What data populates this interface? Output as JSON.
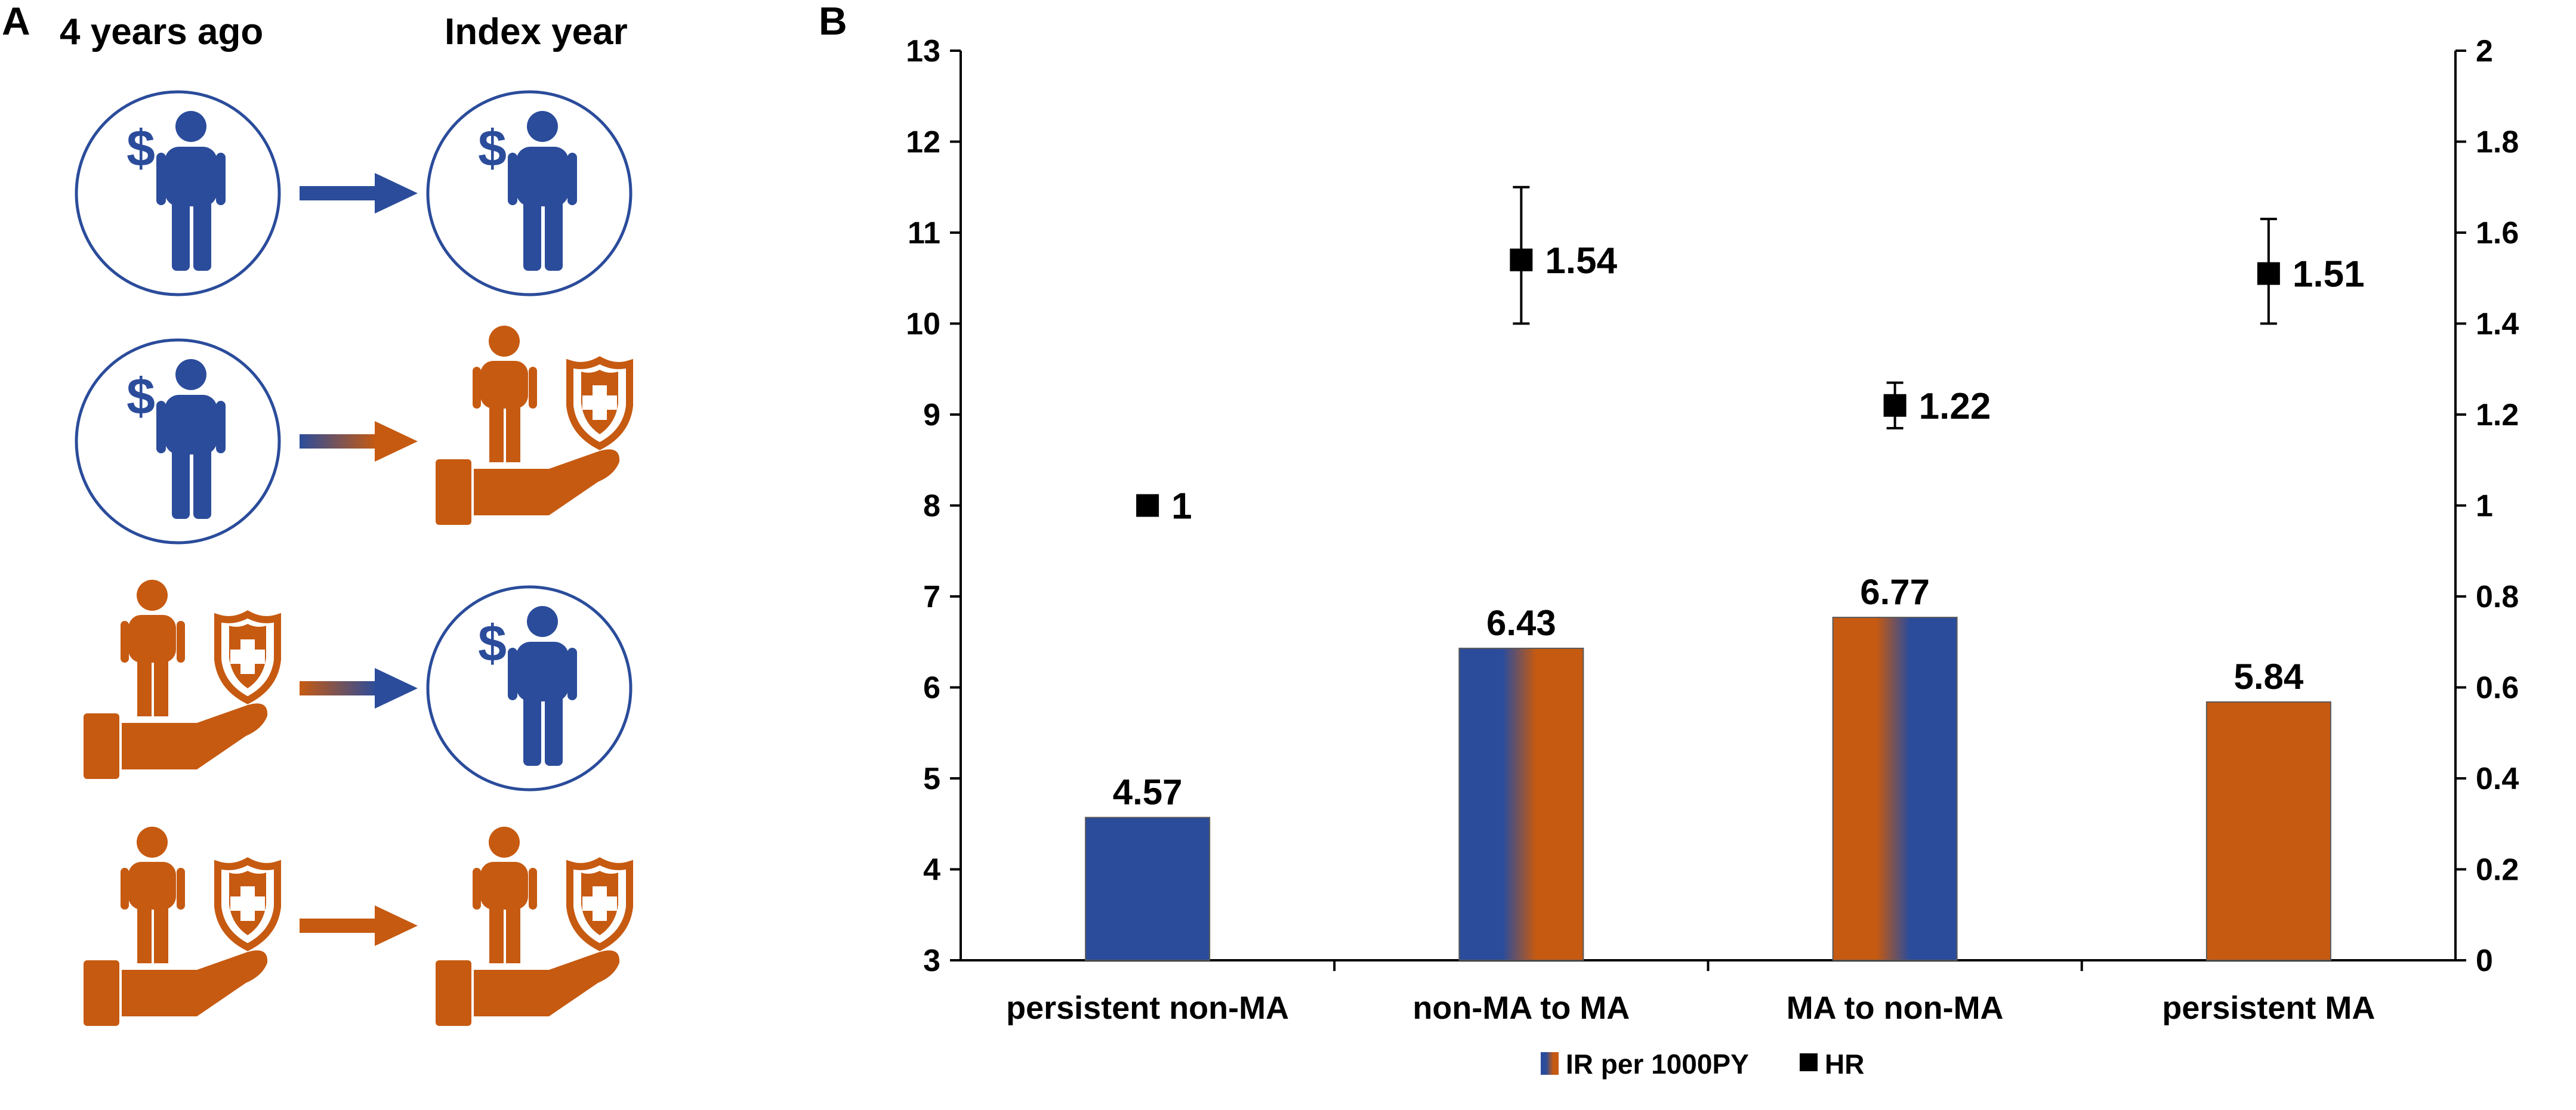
{
  "panel_a": {
    "label": "A",
    "col_left": "4 years ago",
    "col_right": "Index year",
    "dollar": "$",
    "rows": [
      {
        "from": "non-MA",
        "to": "non-MA"
      },
      {
        "from": "non-MA",
        "to": "MA"
      },
      {
        "from": "MA",
        "to": "non-MA"
      },
      {
        "from": "MA",
        "to": "MA"
      }
    ]
  },
  "chart_data": {
    "panel_label": "B",
    "type": "bar",
    "categories": [
      "persistent non-MA",
      "non-MA to MA",
      "MA to non-MA",
      "persistent MA"
    ],
    "series": [
      {
        "name": "IR per 1000PY",
        "type": "bar",
        "axis": "left",
        "values": [
          4.57,
          6.43,
          6.77,
          5.84
        ],
        "labels": [
          "4.57",
          "6.43",
          "6.77",
          "5.84"
        ]
      },
      {
        "name": "HR",
        "type": "scatter",
        "axis": "right",
        "values": [
          1,
          1.54,
          1.22,
          1.51
        ],
        "labels": [
          "1",
          "1.54",
          "1.22",
          "1.51"
        ],
        "ci_low": [
          null,
          1.4,
          1.17,
          1.4
        ],
        "ci_high": [
          null,
          1.7,
          1.27,
          1.63
        ]
      }
    ],
    "ylim_left": [
      3,
      13
    ],
    "yticks_left": [
      "3",
      "4",
      "5",
      "6",
      "7",
      "8",
      "9",
      "10",
      "11",
      "12",
      "13"
    ],
    "ylim_right": [
      0,
      2
    ],
    "yticks_right": [
      "0",
      "0.2",
      "0.4",
      "0.6",
      "0.8",
      "1",
      "1.2",
      "1.4",
      "1.6",
      "1.8",
      "2"
    ],
    "legend": [
      "IR per 1000PY",
      "HR"
    ],
    "legend_position": "bottom-center",
    "grid": false
  },
  "colors": {
    "blue": "#2B4C9B",
    "orange": "#C65A11",
    "black": "#000000"
  }
}
